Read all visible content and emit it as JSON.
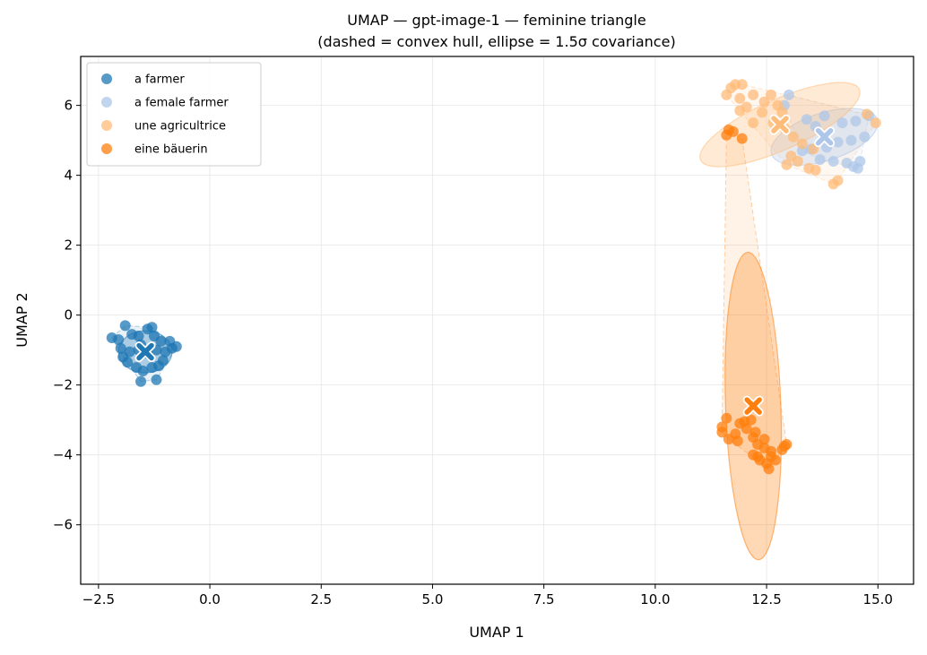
{
  "chart_data": {
    "type": "scatter",
    "title": "UMAP — gpt-image-1 — feminine triangle",
    "subtitle": "(dashed = convex hull, ellipse = 1.5σ covariance)",
    "xlabel": "UMAP 1",
    "ylabel": "UMAP 2",
    "xlim": [
      -2.9,
      15.8
    ],
    "ylim": [
      -7.7,
      7.4
    ],
    "xticks": [
      -2.5,
      0.0,
      2.5,
      5.0,
      7.5,
      10.0,
      12.5,
      15.0
    ],
    "xtick_labels": [
      "−2.5",
      "0.0",
      "2.5",
      "5.0",
      "7.5",
      "10.0",
      "12.5",
      "15.0"
    ],
    "yticks": [
      -6,
      -4,
      -2,
      0,
      2,
      4,
      6
    ],
    "ytick_labels": [
      "−6",
      "−4",
      "−2",
      "0",
      "2",
      "4",
      "6"
    ],
    "grid": true,
    "legend_position": "top-left",
    "series": [
      {
        "name": "a farmer",
        "color": "#1f77b4",
        "centroid": [
          -1.45,
          -1.05
        ],
        "ellipse": {
          "center": [
            -1.45,
            -1.05
          ],
          "half_width": 0.6,
          "half_height": 0.6,
          "angle": 0
        },
        "points": [
          [
            -2.2,
            -0.65
          ],
          [
            -2.05,
            -0.7
          ],
          [
            -1.9,
            -0.3
          ],
          [
            -1.75,
            -0.55
          ],
          [
            -1.6,
            -0.6
          ],
          [
            -1.55,
            -0.85
          ],
          [
            -1.4,
            -0.4
          ],
          [
            -1.3,
            -0.35
          ],
          [
            -1.25,
            -0.6
          ],
          [
            -1.1,
            -0.75
          ],
          [
            -0.9,
            -0.75
          ],
          [
            -0.85,
            -0.95
          ],
          [
            -0.75,
            -0.9
          ],
          [
            -1.0,
            -1.05
          ],
          [
            -1.2,
            -1.0
          ],
          [
            -1.4,
            -1.1
          ],
          [
            -1.6,
            -1.0
          ],
          [
            -1.8,
            -1.05
          ],
          [
            -2.0,
            -0.95
          ],
          [
            -1.95,
            -1.2
          ],
          [
            -1.85,
            -1.35
          ],
          [
            -1.65,
            -1.5
          ],
          [
            -1.5,
            -1.6
          ],
          [
            -1.3,
            -1.5
          ],
          [
            -1.15,
            -1.45
          ],
          [
            -1.05,
            -1.3
          ],
          [
            -1.55,
            -1.9
          ],
          [
            -1.2,
            -1.85
          ]
        ]
      },
      {
        "name": "a female farmer",
        "color": "#aec7e8",
        "centroid": [
          13.8,
          5.1
        ],
        "ellipse": {
          "center": [
            13.8,
            5.1
          ],
          "half_width": 1.25,
          "half_height": 0.68,
          "angle": -18
        },
        "points": [
          [
            13.0,
            6.3
          ],
          [
            13.4,
            5.6
          ],
          [
            13.6,
            5.4
          ],
          [
            13.8,
            5.7
          ],
          [
            14.2,
            5.5
          ],
          [
            14.5,
            5.55
          ],
          [
            14.8,
            5.7
          ],
          [
            14.7,
            5.1
          ],
          [
            14.4,
            5.0
          ],
          [
            14.1,
            4.95
          ],
          [
            13.85,
            4.8
          ],
          [
            13.5,
            4.75
          ],
          [
            13.3,
            4.7
          ],
          [
            14.0,
            4.4
          ],
          [
            14.3,
            4.35
          ],
          [
            14.45,
            4.25
          ],
          [
            14.55,
            4.2
          ],
          [
            13.7,
            4.45
          ],
          [
            14.6,
            4.4
          ],
          [
            12.9,
            6.0
          ]
        ]
      },
      {
        "name": "une agricultrice",
        "color": "#ffbb78",
        "centroid": [
          12.8,
          5.45
        ],
        "ellipse": {
          "center": [
            12.8,
            5.45
          ],
          "half_width": 1.95,
          "half_height": 0.72,
          "angle": -24
        },
        "points": [
          [
            11.7,
            6.5
          ],
          [
            11.8,
            6.6
          ],
          [
            11.95,
            6.6
          ],
          [
            11.6,
            6.3
          ],
          [
            11.9,
            6.2
          ],
          [
            12.05,
            5.95
          ],
          [
            12.2,
            6.3
          ],
          [
            12.45,
            6.1
          ],
          [
            12.6,
            6.3
          ],
          [
            12.75,
            6.0
          ],
          [
            12.85,
            5.8
          ],
          [
            12.4,
            5.8
          ],
          [
            12.2,
            5.5
          ],
          [
            12.65,
            5.5
          ],
          [
            12.9,
            5.35
          ],
          [
            13.1,
            5.1
          ],
          [
            13.3,
            4.9
          ],
          [
            13.55,
            4.75
          ],
          [
            13.05,
            4.55
          ],
          [
            12.95,
            4.3
          ],
          [
            13.2,
            4.4
          ],
          [
            13.45,
            4.2
          ],
          [
            13.6,
            4.15
          ],
          [
            14.0,
            3.75
          ],
          [
            14.1,
            3.85
          ],
          [
            14.75,
            5.75
          ],
          [
            14.95,
            5.5
          ],
          [
            11.9,
            5.85
          ]
        ]
      },
      {
        "name": "eine bäuerin",
        "color": "#ff7f0e",
        "centroid": [
          12.2,
          -2.6
        ],
        "ellipse": {
          "center": [
            12.2,
            -2.6
          ],
          "half_width": 0.62,
          "half_height": 4.4,
          "angle": -2
        },
        "points": [
          [
            11.5,
            -3.2
          ],
          [
            11.5,
            -3.35
          ],
          [
            11.6,
            -2.95
          ],
          [
            11.65,
            -3.55
          ],
          [
            11.8,
            -3.4
          ],
          [
            11.85,
            -3.6
          ],
          [
            11.9,
            -3.1
          ],
          [
            12.0,
            -3.05
          ],
          [
            12.05,
            -3.25
          ],
          [
            12.15,
            -3.0
          ],
          [
            12.25,
            -3.35
          ],
          [
            12.2,
            -3.5
          ],
          [
            12.3,
            -3.7
          ],
          [
            12.45,
            -3.55
          ],
          [
            12.45,
            -3.8
          ],
          [
            12.2,
            -4.0
          ],
          [
            12.3,
            -4.05
          ],
          [
            12.35,
            -4.15
          ],
          [
            12.5,
            -4.25
          ],
          [
            12.55,
            -4.4
          ],
          [
            12.6,
            -4.05
          ],
          [
            12.7,
            -4.15
          ],
          [
            12.85,
            -3.85
          ],
          [
            12.9,
            -3.75
          ],
          [
            12.95,
            -3.7
          ],
          [
            12.6,
            -3.9
          ],
          [
            11.6,
            5.15
          ],
          [
            11.65,
            5.3
          ],
          [
            11.75,
            5.25
          ],
          [
            11.95,
            5.05
          ]
        ]
      }
    ]
  }
}
